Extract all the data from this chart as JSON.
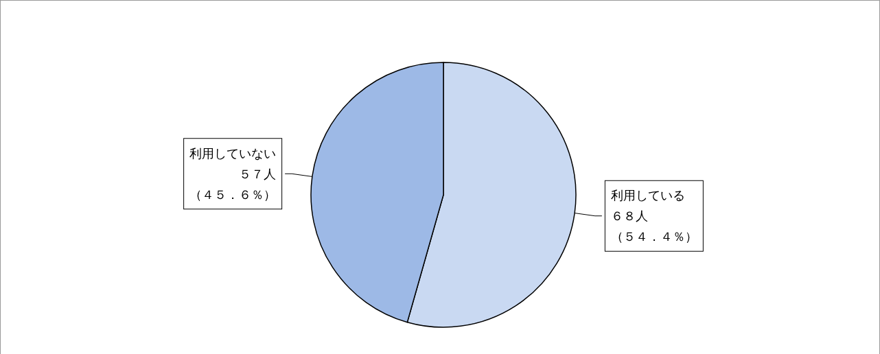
{
  "chart_data": {
    "type": "pie",
    "categories": [
      "利用している",
      "利用していない"
    ],
    "values": [
      68,
      57
    ],
    "value_labels": [
      "６８人（５４．４％）",
      "５７人（４５．６％）"
    ],
    "colors": [
      "#c9d9f2",
      "#9db9e6"
    ]
  }
}
